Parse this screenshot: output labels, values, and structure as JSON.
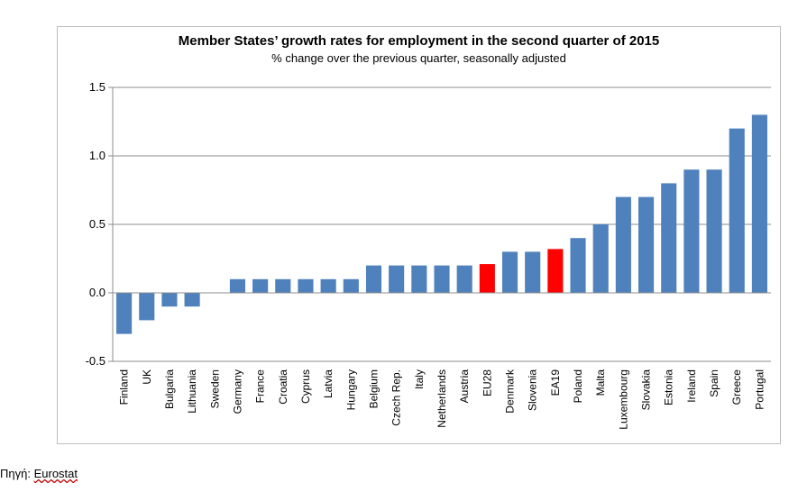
{
  "chart_data": {
    "type": "bar",
    "title": "Member States’ growth rates for employment in the second quarter of 2015",
    "subtitle": "% change over the previous quarter, seasonally adjusted",
    "xlabel": "",
    "ylabel": "",
    "ylim": [
      -0.5,
      1.5
    ],
    "yticks": [
      "1.5",
      "1.0",
      "0.5",
      "0.0",
      "-0.5"
    ],
    "ytick_values": [
      1.5,
      1.0,
      0.5,
      0.0,
      -0.5
    ],
    "grid": true,
    "legend": "none",
    "colors": {
      "default": "#4f81bd",
      "highlight": "#ff0000"
    },
    "categories": [
      "Finland",
      "UK",
      "Bulgaria",
      "Lithuania",
      "Sweden",
      "Germany",
      "France",
      "Croatia",
      "Cyprus",
      "Latvia",
      "Hungary",
      "Belgium",
      "Czech Rep.",
      "Italy",
      "Netherlands",
      "Austria",
      "EU28",
      "Denmark",
      "Slovenia",
      "EA19",
      "Poland",
      "Malta",
      "Luxembourg",
      "Slovakia",
      "Estonia",
      "Ireland",
      "Spain",
      "Greece",
      "Portugal"
    ],
    "values": [
      -0.3,
      -0.2,
      -0.1,
      -0.1,
      0.0,
      0.1,
      0.1,
      0.1,
      0.1,
      0.1,
      0.1,
      0.2,
      0.2,
      0.2,
      0.2,
      0.2,
      0.21,
      0.3,
      0.3,
      0.32,
      0.4,
      0.5,
      0.7,
      0.7,
      0.8,
      0.9,
      0.9,
      1.2,
      1.3
    ],
    "highlighted": [
      "EU28",
      "EA19"
    ]
  },
  "source": {
    "label": "Πηγή:",
    "link_text": "Eurostat"
  }
}
